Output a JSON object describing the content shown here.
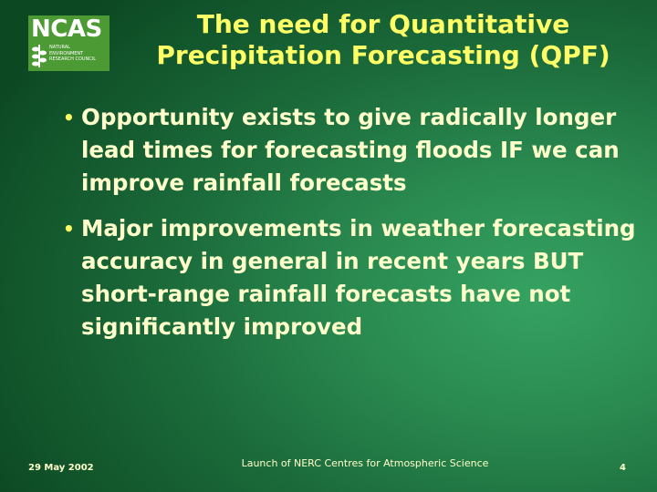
{
  "logo": {
    "mark": "NCAS",
    "subtitle_lines": [
      "NATURAL",
      "ENVIRONMENT",
      "RESEARCH COUNCIL"
    ],
    "background_color": "#4c9a33",
    "icon": "leaf-icon"
  },
  "title": {
    "line1": "The need for Quantitative",
    "line2": "Precipitation Forecasting (QPF)"
  },
  "bullets": [
    "Opportunity exists to give radically longer lead times for forecasting floods IF we can improve rainfall forecasts",
    "Major improvements in weather forecasting accuracy in general in recent years BUT short-range rainfall forecasts have not significantly improved"
  ],
  "footer": {
    "date": "29 May 2002",
    "center": "Launch of NERC Centres for Atmospheric Science",
    "page": "4"
  },
  "colors": {
    "title": "#ffff66",
    "body_text": "#ffffcc",
    "background_dark": "#0c4822",
    "background_light": "#35a262"
  }
}
